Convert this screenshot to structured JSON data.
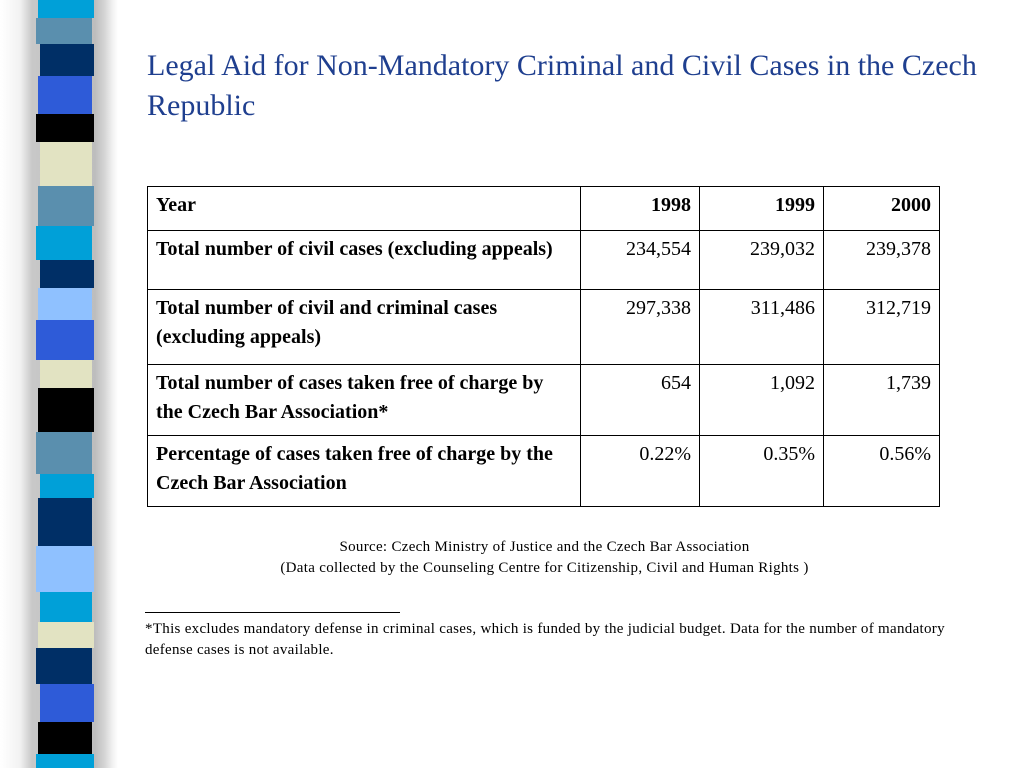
{
  "title": "Legal Aid for Non-Mandatory Criminal and Civil Cases in the Czech Republic",
  "table": {
    "header": {
      "label": "Year",
      "years": [
        "1998",
        "1999",
        "2000"
      ]
    },
    "rows": [
      {
        "label": "Total number of civil cases (excluding appeals)",
        "values": [
          "234,554",
          "239,032",
          "239,378"
        ]
      },
      {
        "label": "Total number of civil and criminal cases (excluding appeals)",
        "values": [
          "297,338",
          "311,486",
          "312,719"
        ]
      },
      {
        "label": "Total number of cases taken free of charge by the Czech Bar Association*",
        "values": [
          "654",
          "1,092",
          "1,739"
        ]
      },
      {
        "label": "Percentage of cases taken free of charge by the Czech Bar Association",
        "values": [
          "0.22%",
          "0.35%",
          "0.56%"
        ]
      }
    ]
  },
  "source": {
    "line1": "Source: Czech Ministry of Justice and the Czech Bar Association",
    "line2": "(Data collected by the Counseling Centre for Citizenship, Civil and Human Rights )"
  },
  "footnote": "*This excludes mandatory defense in criminal cases, which is funded by the judicial budget. Data for the number of mandatory defense cases is not available.",
  "colors": {
    "title": "#1f3f8f",
    "strip": [
      "#00a0d8",
      "#5a8fae",
      "#002f66",
      "#2e5bd8",
      "#000000",
      "#e2e3c2",
      "#8fc1ff"
    ]
  }
}
